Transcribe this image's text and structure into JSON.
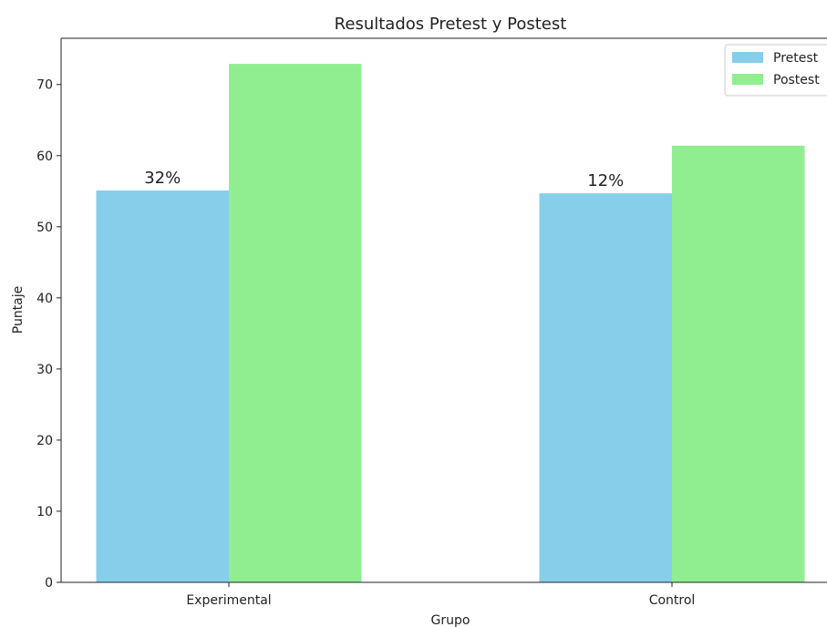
{
  "chart_data": {
    "type": "bar",
    "title": "Resultados Pretest y Postest",
    "xlabel": "Grupo",
    "ylabel": "Puntaje",
    "categories": [
      "Experimental",
      "Control"
    ],
    "series": [
      {
        "name": "Pretest",
        "values": [
          55.1,
          54.7
        ],
        "color": "#87ceeb",
        "labels": [
          "32%",
          "12%"
        ]
      },
      {
        "name": "Postest",
        "values": [
          72.9,
          61.4
        ],
        "color": "#90ee90"
      }
    ],
    "ylim": [
      0,
      76.5
    ],
    "yticks": [
      0,
      10,
      20,
      30,
      40,
      50,
      60,
      70
    ],
    "grid": false,
    "legend_position": "top-right"
  }
}
